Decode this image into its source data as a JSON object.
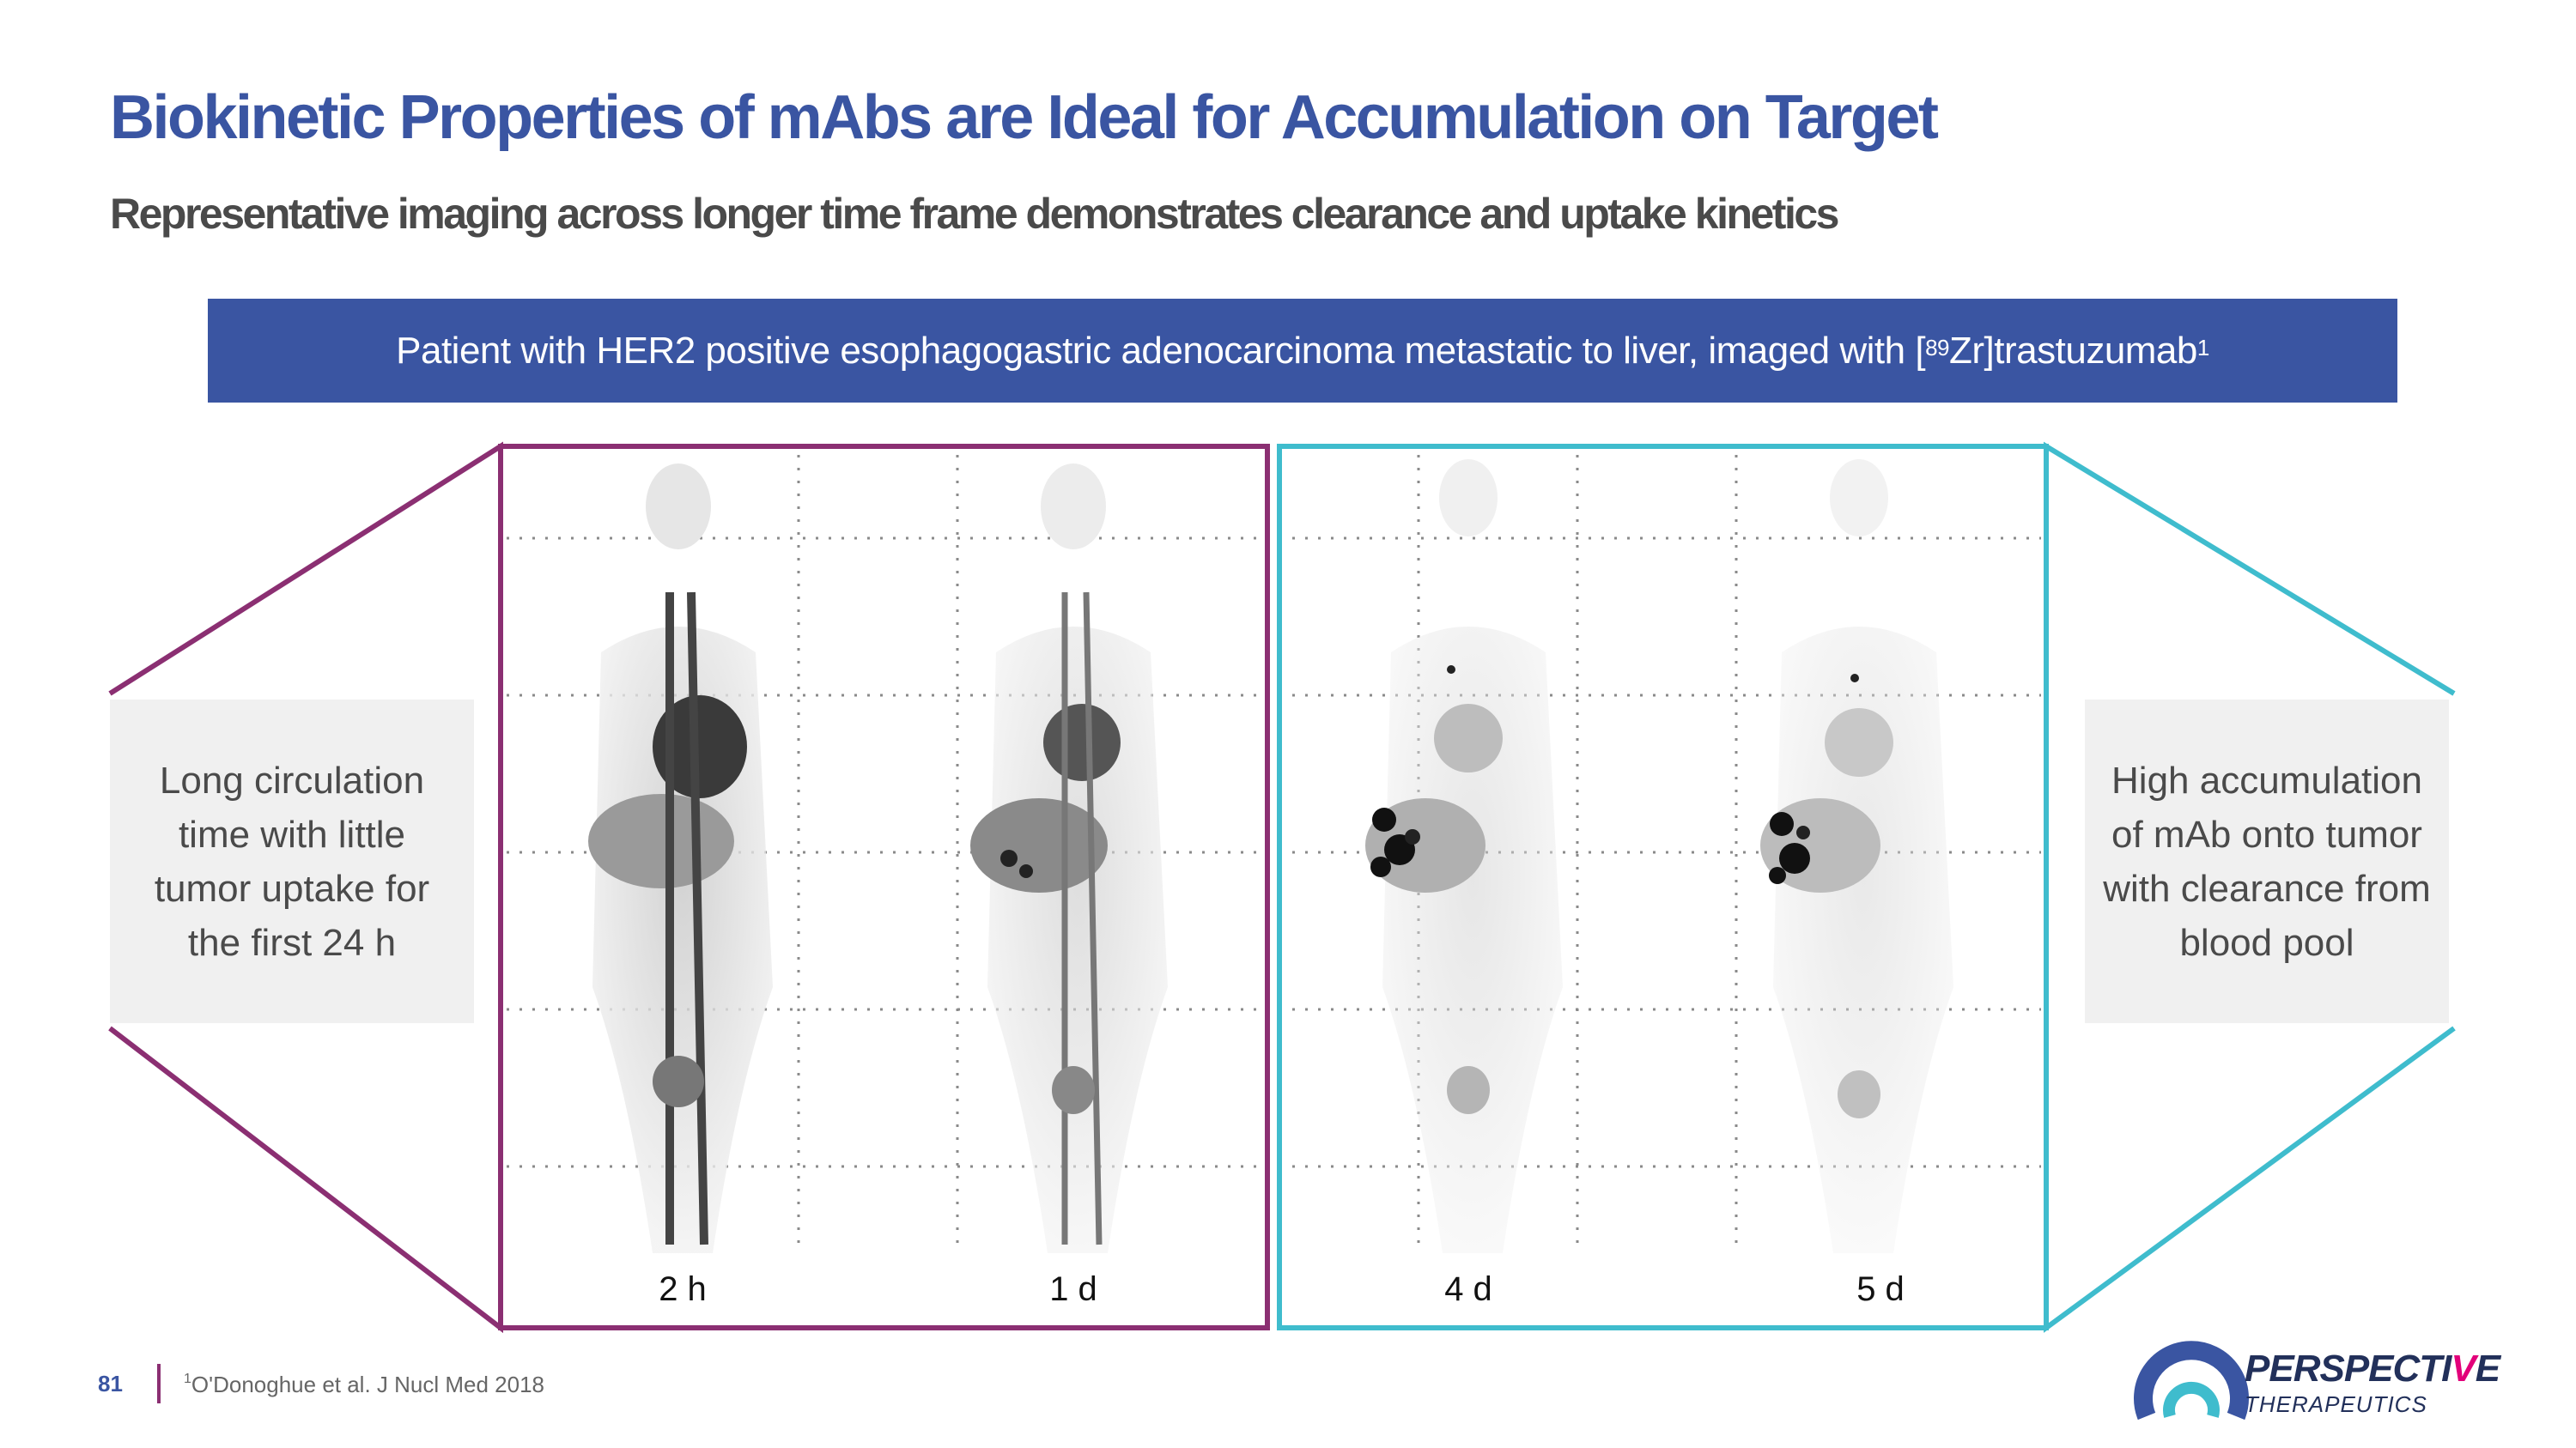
{
  "slide": {
    "title": "Biokinetic Properties of mAbs are Ideal for Accumulation on Target",
    "subtitle": "Representative imaging across longer time frame demonstrates clearance and uptake kinetics",
    "banner": {
      "text_before": "Patient with HER2 positive esophagogastric adenocarcinoma metastatic to liver, imaged with ",
      "bracket_open": "[",
      "isotope_mass": "89",
      "isotope_rest": "Zr]trastuzumab",
      "footnote_mark": "1"
    },
    "left_note": "Long circulation time with little tumor uptake for the first 24 h",
    "right_note": "High accumulation of mAb onto tumor with clearance from blood pool",
    "time_labels": [
      "2 h",
      "1 d",
      "4 d",
      "5 d"
    ],
    "page_number": "81",
    "footnote": {
      "mark": "1",
      "text": "O'Donoghue et al. J Nucl Med 2018"
    },
    "logo": {
      "name_main": "PERSPECTI",
      "name_accent": "V",
      "name_end": "E",
      "tagline": "THERAPEUTICS"
    },
    "colors": {
      "brand_blue": "#3a55a2",
      "early_frame": "#8b2f72",
      "late_frame": "#3fbccd"
    }
  }
}
